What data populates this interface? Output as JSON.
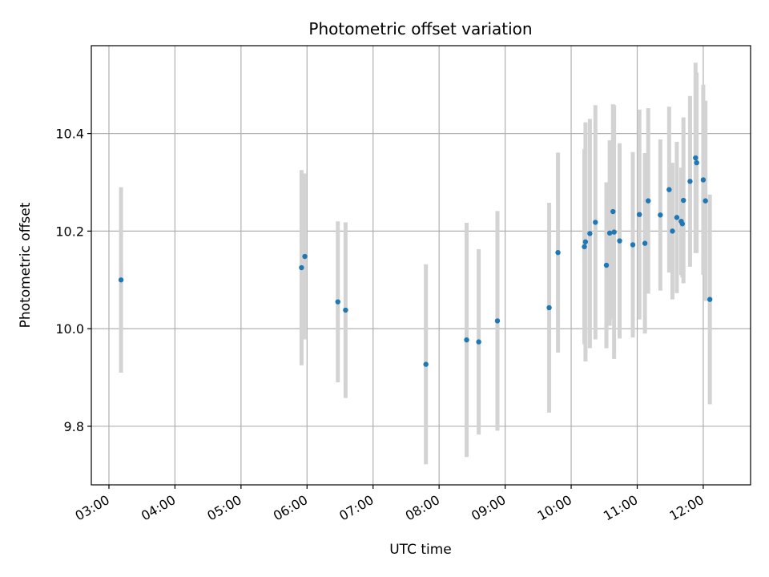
{
  "chart_data": {
    "type": "scatter",
    "title": "Photometric offset variation",
    "xlabel": "UTC time",
    "ylabel": "Photometric offset",
    "x_ticks": [
      "03:00",
      "04:00",
      "05:00",
      "06:00",
      "07:00",
      "08:00",
      "09:00",
      "10:00",
      "11:00",
      "12:00"
    ],
    "y_ticks": [
      "9.8",
      "10.0",
      "10.2",
      "10.4"
    ],
    "xlim": [
      "02:44",
      "12:43"
    ],
    "ylim": [
      9.68,
      10.58
    ],
    "grid": true,
    "colors": {
      "point": "#1f77b4",
      "errorbar": "#d3d3d3",
      "grid": "#b0b0b0"
    },
    "points": [
      {
        "x": "03:11",
        "y": 10.1,
        "err": 0.19
      },
      {
        "x": "05:55",
        "y": 10.125,
        "err": 0.2
      },
      {
        "x": "05:58",
        "y": 10.148,
        "err": 0.17
      },
      {
        "x": "06:28",
        "y": 10.055,
        "err": 0.165
      },
      {
        "x": "06:35",
        "y": 10.038,
        "err": 0.18
      },
      {
        "x": "07:48",
        "y": 9.927,
        "err": 0.205
      },
      {
        "x": "08:25",
        "y": 9.977,
        "err": 0.24
      },
      {
        "x": "08:36",
        "y": 9.973,
        "err": 0.19
      },
      {
        "x": "08:53",
        "y": 10.016,
        "err": 0.225
      },
      {
        "x": "09:40",
        "y": 10.043,
        "err": 0.215
      },
      {
        "x": "09:48",
        "y": 10.156,
        "err": 0.205
      },
      {
        "x": "10:12",
        "y": 10.168,
        "err": 0.2
      },
      {
        "x": "10:13",
        "y": 10.178,
        "err": 0.245
      },
      {
        "x": "10:17",
        "y": 10.195,
        "err": 0.235
      },
      {
        "x": "10:22",
        "y": 10.218,
        "err": 0.24
      },
      {
        "x": "10:32",
        "y": 10.13,
        "err": 0.17
      },
      {
        "x": "10:35",
        "y": 10.196,
        "err": 0.19
      },
      {
        "x": "10:38",
        "y": 10.24,
        "err": 0.22
      },
      {
        "x": "10:39",
        "y": 10.198,
        "err": 0.26
      },
      {
        "x": "10:44",
        "y": 10.18,
        "err": 0.2
      },
      {
        "x": "10:56",
        "y": 10.172,
        "err": 0.19
      },
      {
        "x": "11:02",
        "y": 10.234,
        "err": 0.215
      },
      {
        "x": "11:07",
        "y": 10.175,
        "err": 0.185
      },
      {
        "x": "11:10",
        "y": 10.262,
        "err": 0.19
      },
      {
        "x": "11:21",
        "y": 10.233,
        "err": 0.155
      },
      {
        "x": "11:29",
        "y": 10.285,
        "err": 0.17
      },
      {
        "x": "11:32",
        "y": 10.2,
        "err": 0.14
      },
      {
        "x": "11:36",
        "y": 10.228,
        "err": 0.155
      },
      {
        "x": "11:40",
        "y": 10.22,
        "err": 0.11
      },
      {
        "x": "11:41",
        "y": 10.215,
        "err": 0.11
      },
      {
        "x": "11:42",
        "y": 10.263,
        "err": 0.17
      },
      {
        "x": "11:48",
        "y": 10.302,
        "err": 0.175
      },
      {
        "x": "11:53",
        "y": 10.35,
        "err": 0.195
      },
      {
        "x": "11:54",
        "y": 10.34,
        "err": 0.185
      },
      {
        "x": "12:00",
        "y": 10.305,
        "err": 0.195
      },
      {
        "x": "12:02",
        "y": 10.262,
        "err": 0.205
      },
      {
        "x": "12:06",
        "y": 10.06,
        "err": 0.215
      }
    ]
  }
}
